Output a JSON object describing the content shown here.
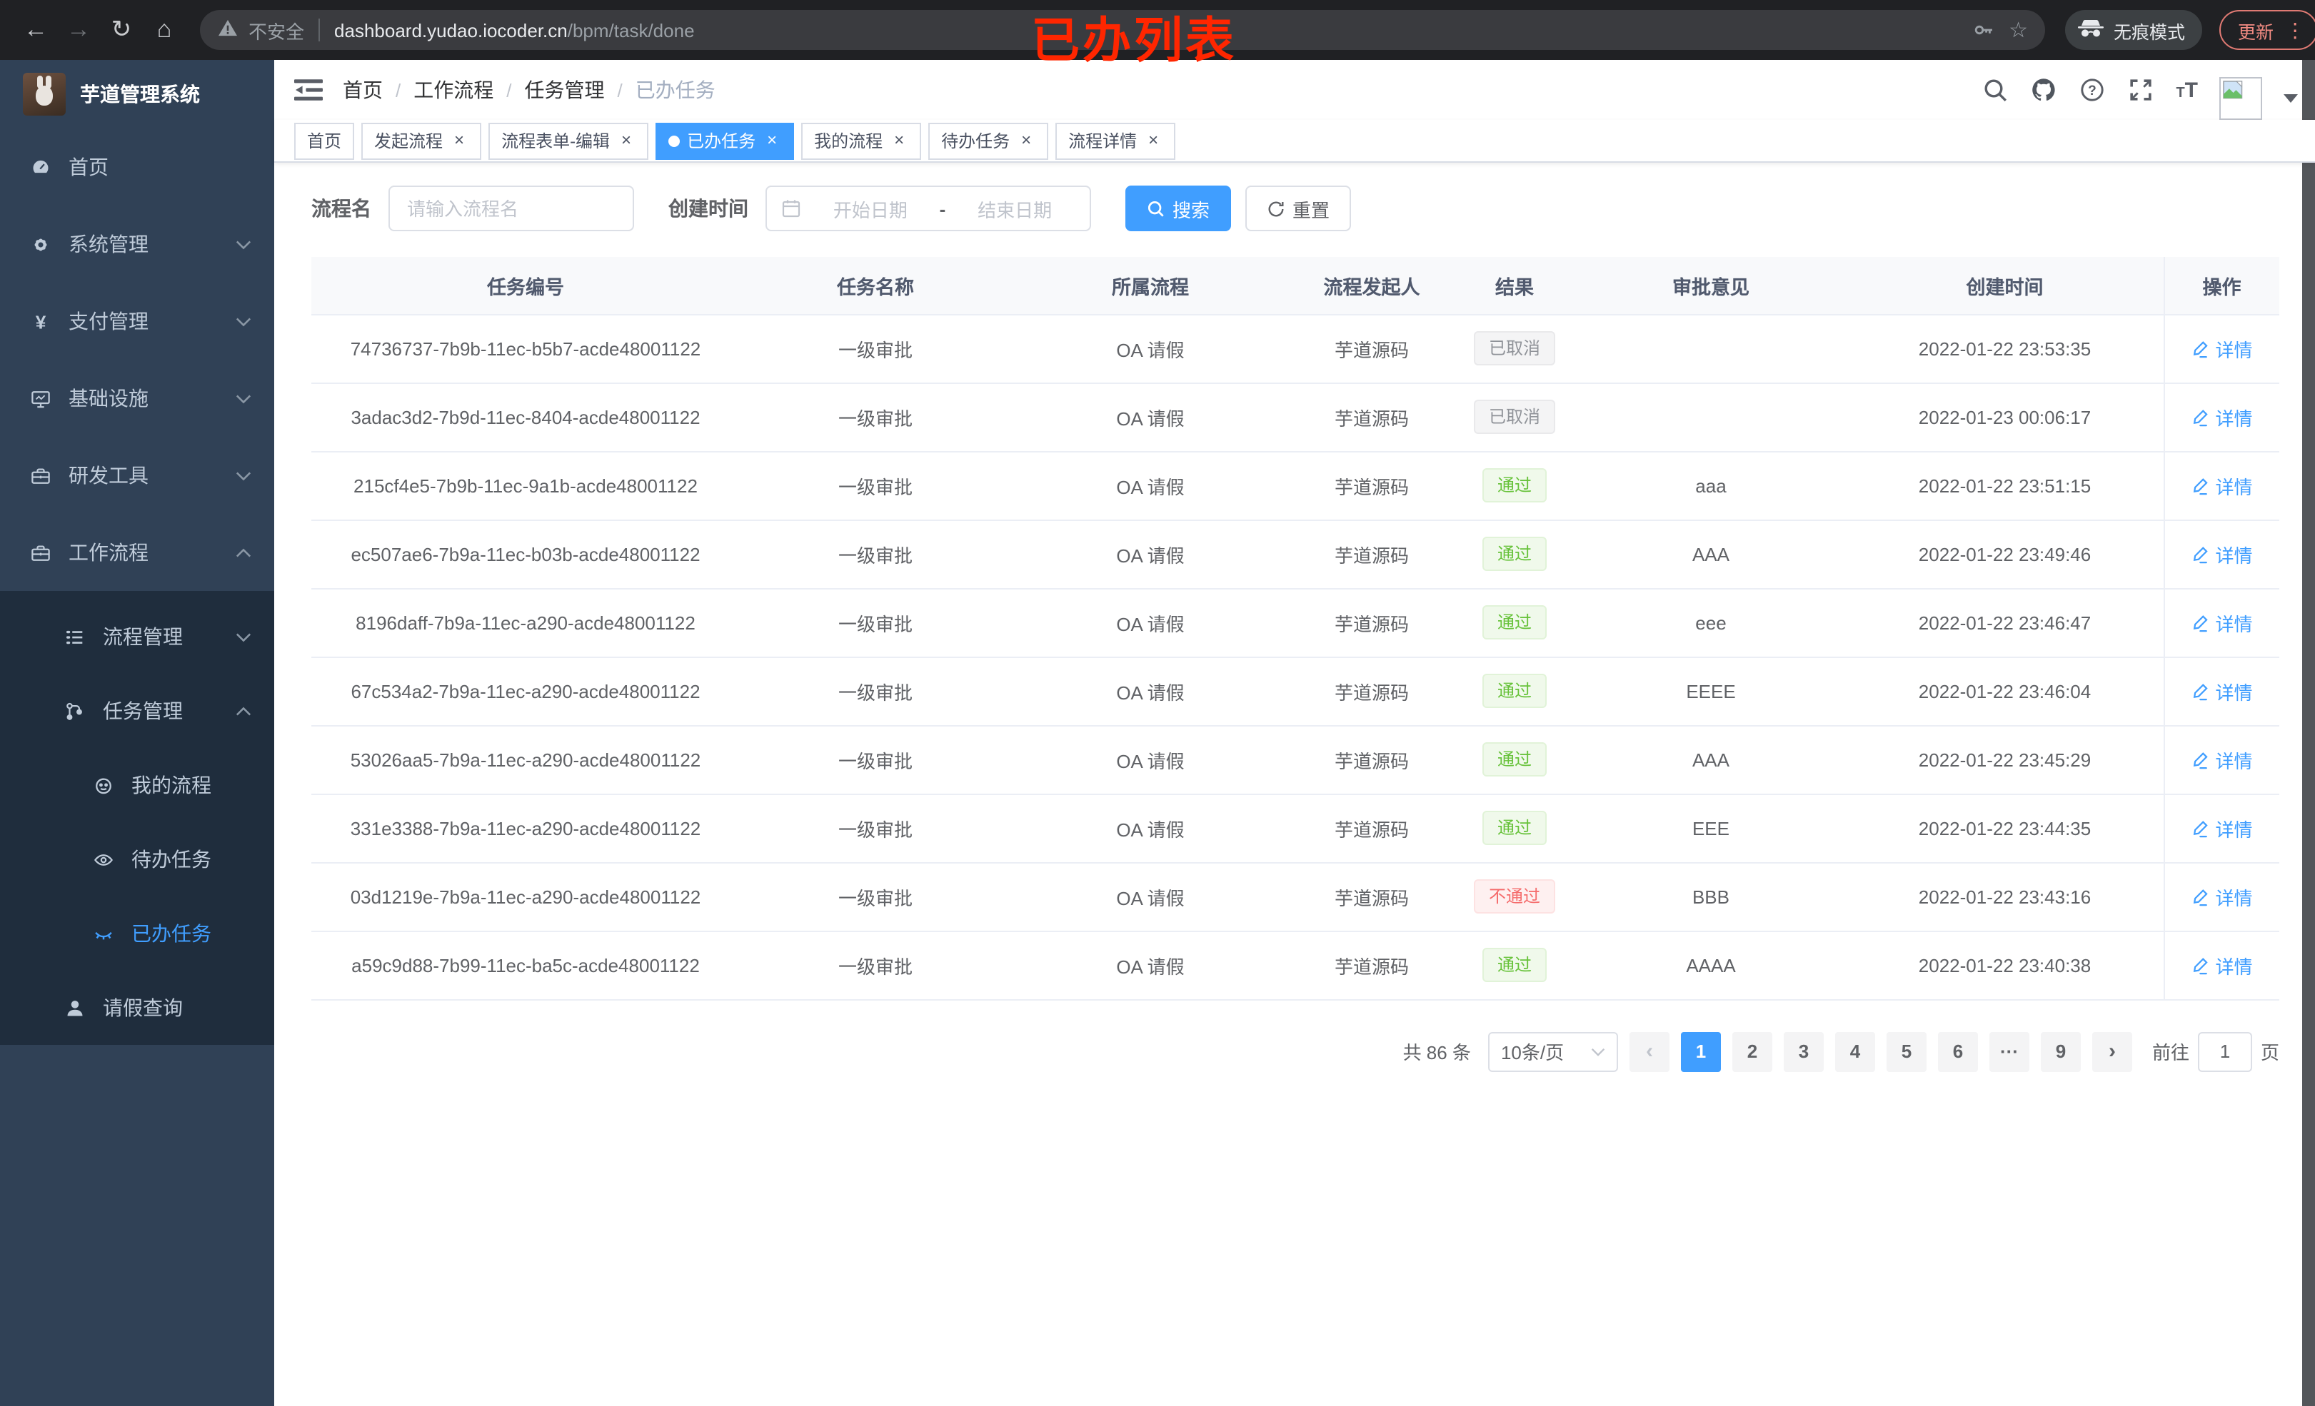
{
  "colors": {
    "primary": "#409eff",
    "sidebar_bg": "#304156",
    "submenu_bg": "#1f2d3d",
    "success": "#67c23a",
    "danger": "#f56c6c",
    "info": "#909399",
    "annotation_red": "#ff2600"
  },
  "browser": {
    "annotation": "已办列表",
    "security_label": "不安全",
    "url_host": "dashboard.yudao.iocoder.cn",
    "url_path": "/bpm/task/done",
    "incognito_label": "无痕模式",
    "update_label": "更新"
  },
  "sidebar": {
    "title": "芋道管理系统",
    "items": [
      {
        "label": "首页",
        "icon": "dashboard",
        "level": 1,
        "chevron": null,
        "sub": false,
        "active": false
      },
      {
        "label": "系统管理",
        "icon": "gear",
        "level": 1,
        "chevron": "down",
        "sub": false,
        "active": false
      },
      {
        "label": "支付管理",
        "icon": "yen",
        "level": 1,
        "chevron": "down",
        "sub": false,
        "active": false
      },
      {
        "label": "基础设施",
        "icon": "monitor",
        "level": 1,
        "chevron": "down",
        "sub": false,
        "active": false
      },
      {
        "label": "研发工具",
        "icon": "toolbox",
        "level": 1,
        "chevron": "down",
        "sub": false,
        "active": false
      },
      {
        "label": "工作流程",
        "icon": "briefcase",
        "level": 1,
        "chevron": "up",
        "sub": false,
        "active": false
      },
      {
        "label": "流程管理",
        "icon": "treelist",
        "level": 2,
        "chevron": "down",
        "sub": true,
        "active": false,
        "padTop": true
      },
      {
        "label": "任务管理",
        "icon": "orgtree",
        "level": 2,
        "chevron": "up",
        "sub": true,
        "active": false
      },
      {
        "label": "我的流程",
        "icon": "robot",
        "level": 3,
        "chevron": null,
        "sub": true,
        "active": false
      },
      {
        "label": "待办任务",
        "icon": "eye-open",
        "level": 3,
        "chevron": null,
        "sub": true,
        "active": false
      },
      {
        "label": "已办任务",
        "icon": "eye-closed",
        "level": 3,
        "chevron": null,
        "sub": true,
        "active": true
      },
      {
        "label": "请假查询",
        "icon": "user",
        "level": 2,
        "chevron": null,
        "sub": true,
        "active": false
      }
    ]
  },
  "header": {
    "breadcrumb": [
      "首页",
      "工作流程",
      "任务管理",
      "已办任务"
    ],
    "separator": "/"
  },
  "tabs": [
    {
      "label": "首页",
      "closable": false,
      "active": false
    },
    {
      "label": "发起流程",
      "closable": true,
      "active": false
    },
    {
      "label": "流程表单-编辑",
      "closable": true,
      "active": false
    },
    {
      "label": "已办任务",
      "closable": true,
      "active": true
    },
    {
      "label": "我的流程",
      "closable": true,
      "active": false
    },
    {
      "label": "待办任务",
      "closable": true,
      "active": false
    },
    {
      "label": "流程详情",
      "closable": true,
      "active": false
    }
  ],
  "filters": {
    "name_label": "流程名",
    "name_placeholder": "请输入流程名",
    "time_label": "创建时间",
    "start_placeholder": "开始日期",
    "range_separator": "-",
    "end_placeholder": "结束日期",
    "search_label": "搜索",
    "reset_label": "重置"
  },
  "table": {
    "columns": [
      "任务编号",
      "任务名称",
      "所属流程",
      "流程发起人",
      "结果",
      "审批意见",
      "创建时间",
      "操作"
    ],
    "detail_label": "详情",
    "rows": [
      {
        "id": "74736737-7b9b-11ec-b5b7-acde48001122",
        "name": "一级审批",
        "process": "OA 请假",
        "starter": "芋道源码",
        "result": "已取消",
        "result_type": "info",
        "opinion": "",
        "created": "2022-01-22 23:53:35"
      },
      {
        "id": "3adac3d2-7b9d-11ec-8404-acde48001122",
        "name": "一级审批",
        "process": "OA 请假",
        "starter": "芋道源码",
        "result": "已取消",
        "result_type": "info",
        "opinion": "",
        "created": "2022-01-23 00:06:17"
      },
      {
        "id": "215cf4e5-7b9b-11ec-9a1b-acde48001122",
        "name": "一级审批",
        "process": "OA 请假",
        "starter": "芋道源码",
        "result": "通过",
        "result_type": "success",
        "opinion": "aaa",
        "created": "2022-01-22 23:51:15"
      },
      {
        "id": "ec507ae6-7b9a-11ec-b03b-acde48001122",
        "name": "一级审批",
        "process": "OA 请假",
        "starter": "芋道源码",
        "result": "通过",
        "result_type": "success",
        "opinion": "AAA",
        "created": "2022-01-22 23:49:46"
      },
      {
        "id": "8196daff-7b9a-11ec-a290-acde48001122",
        "name": "一级审批",
        "process": "OA 请假",
        "starter": "芋道源码",
        "result": "通过",
        "result_type": "success",
        "opinion": "eee",
        "created": "2022-01-22 23:46:47"
      },
      {
        "id": "67c534a2-7b9a-11ec-a290-acde48001122",
        "name": "一级审批",
        "process": "OA 请假",
        "starter": "芋道源码",
        "result": "通过",
        "result_type": "success",
        "opinion": "EEEE",
        "created": "2022-01-22 23:46:04"
      },
      {
        "id": "53026aa5-7b9a-11ec-a290-acde48001122",
        "name": "一级审批",
        "process": "OA 请假",
        "starter": "芋道源码",
        "result": "通过",
        "result_type": "success",
        "opinion": "AAA",
        "created": "2022-01-22 23:45:29"
      },
      {
        "id": "331e3388-7b9a-11ec-a290-acde48001122",
        "name": "一级审批",
        "process": "OA 请假",
        "starter": "芋道源码",
        "result": "通过",
        "result_type": "success",
        "opinion": "EEE",
        "created": "2022-01-22 23:44:35"
      },
      {
        "id": "03d1219e-7b9a-11ec-a290-acde48001122",
        "name": "一级审批",
        "process": "OA 请假",
        "starter": "芋道源码",
        "result": "不通过",
        "result_type": "danger",
        "opinion": "BBB",
        "created": "2022-01-22 23:43:16"
      },
      {
        "id": "a59c9d88-7b99-11ec-ba5c-acde48001122",
        "name": "一级审批",
        "process": "OA 请假",
        "starter": "芋道源码",
        "result": "通过",
        "result_type": "success",
        "opinion": "AAAA",
        "created": "2022-01-22 23:40:38"
      }
    ]
  },
  "pagination": {
    "total_text": "共 86 条",
    "page_size": "10条/页",
    "prev": "‹",
    "pages": [
      "1",
      "2",
      "3",
      "4",
      "5",
      "6",
      "···",
      "9"
    ],
    "active_page": "1",
    "next": "›",
    "goto_label": "前往",
    "goto_value": "1",
    "page_suffix": "页"
  }
}
